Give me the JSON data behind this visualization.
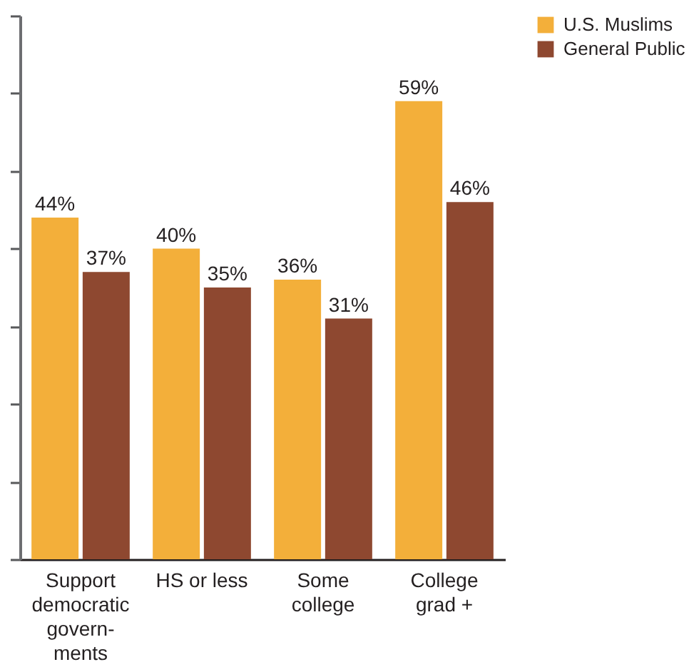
{
  "chart_data": {
    "type": "bar",
    "categories": [
      "Support\ndemocratic\ngovern-\nments",
      "HS or less",
      "Some\ncollege",
      "College\ngrad +"
    ],
    "series": [
      {
        "name": "U.S. Muslims",
        "color": "#f3af3a",
        "values": [
          44,
          40,
          36,
          59
        ],
        "value_labels": [
          "44%",
          "40%",
          "36%",
          "59%"
        ]
      },
      {
        "name": "General Public",
        "color": "#8e4830",
        "values": [
          37,
          35,
          31,
          46
        ],
        "value_labels": [
          "37%",
          "35%",
          "31%",
          "46%"
        ]
      }
    ],
    "ylim": [
      0,
      70
    ],
    "yticks": [
      {
        "value": 0,
        "label": null
      },
      {
        "value": 10,
        "label": null
      },
      {
        "value": 20,
        "label": null
      },
      {
        "value": 30,
        "label": null
      },
      {
        "value": 40,
        "label": null
      },
      {
        "value": 50,
        "label": null
      },
      {
        "value": 60,
        "label": null
      },
      {
        "value": 70,
        "label": null
      }
    ],
    "tick_labels": "x",
    "legend": "top right"
  }
}
